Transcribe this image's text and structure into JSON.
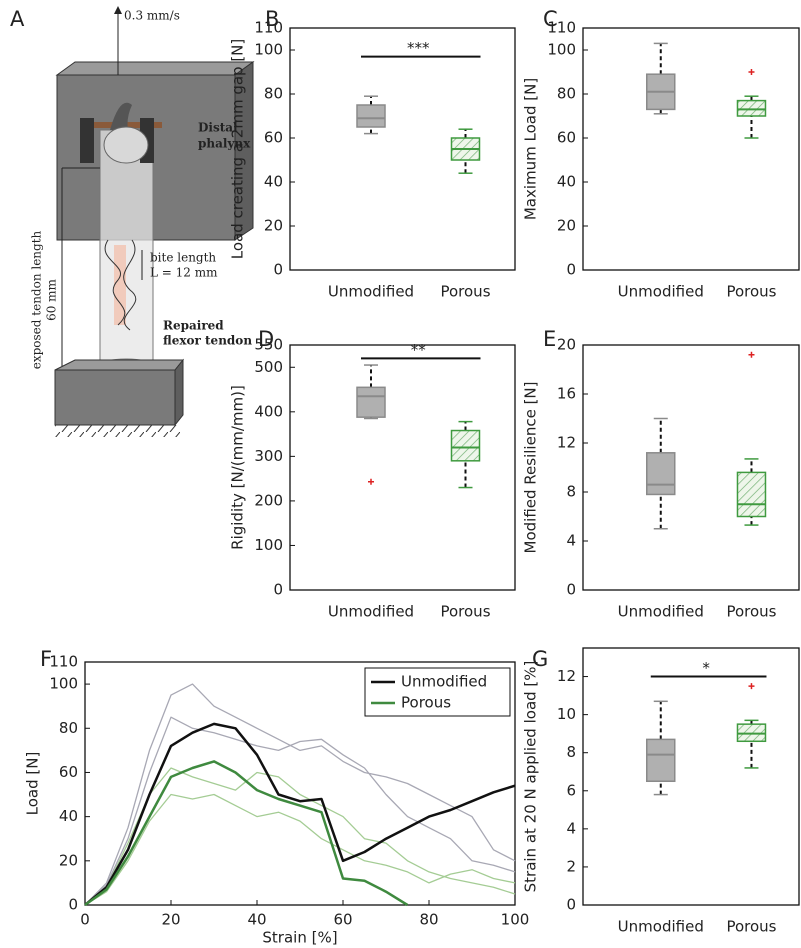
{
  "panel_a": {
    "label": "A",
    "speed": "0.3 mm/s",
    "distal_1": "Distal",
    "distal_2": "phalynx",
    "exposed_1": "exposed tendon length",
    "exposed_2": "60 mm",
    "bite_1": "bite length",
    "bite_2": "L = 12 mm",
    "repaired_1": "Repaired",
    "repaired_2": "flexor tendon"
  },
  "chart_data": [
    {
      "type": "box",
      "label": "B",
      "y_label": "Load creating a 2mm gap [N]",
      "categories": [
        "Unmodified",
        "Porous"
      ],
      "ylim": [
        0,
        110
      ],
      "yticks": [
        0,
        20,
        40,
        60,
        80,
        100,
        110
      ],
      "boxes": [
        {
          "color": "#8a8a8a",
          "fill": "#b0b0b0",
          "whislo": 62,
          "q1": 65,
          "med": 69,
          "q3": 75,
          "whishi": 79,
          "fliers": []
        },
        {
          "color": "#3f9a3f",
          "fill": "hatch",
          "whislo": 44,
          "q1": 50,
          "med": 55,
          "q3": 60,
          "whishi": 64,
          "fliers": []
        }
      ],
      "significance": {
        "label": "***",
        "y": 97
      }
    },
    {
      "type": "box",
      "label": "C",
      "y_label": "Maximum Load [N]",
      "categories": [
        "Unmodified",
        "Porous"
      ],
      "ylim": [
        0,
        110
      ],
      "yticks": [
        0,
        20,
        40,
        60,
        80,
        100,
        110
      ],
      "boxes": [
        {
          "color": "#8a8a8a",
          "fill": "#b0b0b0",
          "whislo": 71,
          "q1": 73,
          "med": 81,
          "q3": 89,
          "whishi": 103,
          "fliers": []
        },
        {
          "color": "#3f9a3f",
          "fill": "hatch",
          "whislo": 60,
          "q1": 70,
          "med": 73,
          "q3": 77,
          "whishi": 79,
          "fliers": [
            90
          ]
        }
      ]
    },
    {
      "type": "box",
      "label": "D",
      "y_label": "Rigidity [N/(mm/mm)]",
      "categories": [
        "Unmodified",
        "Porous"
      ],
      "ylim": [
        0,
        550
      ],
      "yticks": [
        0,
        100,
        200,
        300,
        400,
        500,
        550
      ],
      "boxes": [
        {
          "color": "#8a8a8a",
          "fill": "#b0b0b0",
          "whislo": 385,
          "q1": 388,
          "med": 435,
          "q3": 455,
          "whishi": 505,
          "fliers": [
            243
          ]
        },
        {
          "color": "#3f9a3f",
          "fill": "hatch",
          "whislo": 230,
          "q1": 290,
          "med": 320,
          "q3": 358,
          "whishi": 378,
          "fliers": []
        }
      ],
      "significance": {
        "label": "**",
        "y": 520
      }
    },
    {
      "type": "box",
      "label": "E",
      "y_label": "Modified Resilience [N]",
      "categories": [
        "Unmodified",
        "Porous"
      ],
      "ylim": [
        0,
        20
      ],
      "yticks": [
        0,
        4,
        8,
        12,
        16,
        20
      ],
      "boxes": [
        {
          "color": "#8a8a8a",
          "fill": "#b0b0b0",
          "whislo": 5,
          "q1": 7.8,
          "med": 8.6,
          "q3": 11.2,
          "whishi": 14,
          "fliers": []
        },
        {
          "color": "#3f9a3f",
          "fill": "hatch",
          "whislo": 5.3,
          "q1": 6,
          "med": 7,
          "q3": 9.6,
          "whishi": 10.7,
          "fliers": [
            19.2
          ]
        }
      ]
    },
    {
      "type": "line",
      "label": "F",
      "x_label": "Strain [%]",
      "y_label": "Load [N]",
      "xlim": [
        0,
        100
      ],
      "xticks": [
        0,
        20,
        40,
        60,
        80,
        100
      ],
      "ylim": [
        0,
        110
      ],
      "yticks": [
        0,
        20,
        40,
        60,
        80,
        100,
        110
      ],
      "x": [
        0,
        5,
        10,
        15,
        20,
        25,
        30,
        35,
        40,
        45,
        50,
        55,
        60,
        65,
        70,
        75,
        80,
        85,
        90,
        95,
        100
      ],
      "series": [
        {
          "color": "#a8a8b4",
          "width": 1.3,
          "values": [
            0,
            10,
            35,
            70,
            95,
            100,
            90,
            85,
            80,
            75,
            70,
            72,
            65,
            60,
            58,
            55,
            50,
            45,
            40,
            25,
            20
          ]
        },
        {
          "color": "#a8a8b4",
          "width": 1.3,
          "values": [
            0,
            9,
            30,
            60,
            85,
            80,
            78,
            75,
            72,
            70,
            74,
            75,
            68,
            62,
            50,
            40,
            35,
            30,
            20,
            18,
            15
          ]
        },
        {
          "color": "#a4cc94",
          "width": 1.3,
          "values": [
            0,
            8,
            28,
            50,
            62,
            58,
            55,
            52,
            60,
            58,
            50,
            45,
            40,
            30,
            28,
            20,
            15,
            12,
            10,
            8,
            5
          ]
        },
        {
          "color": "#a4cc94",
          "width": 1.3,
          "values": [
            0,
            6,
            20,
            38,
            50,
            48,
            50,
            45,
            40,
            42,
            38,
            30,
            25,
            20,
            18,
            15,
            10,
            14,
            16,
            12,
            10
          ]
        },
        {
          "name": "Unmodified",
          "color": "#111111",
          "width": 2.5,
          "values": [
            0,
            8,
            25,
            50,
            72,
            78,
            82,
            80,
            68,
            50,
            47,
            48,
            20,
            24,
            30,
            35,
            40,
            43,
            47,
            51,
            54
          ]
        },
        {
          "name": "Porous",
          "color": "#3f8a3f",
          "width": 2.5,
          "values": [
            0,
            7,
            22,
            40,
            58,
            62,
            65,
            60,
            52,
            48,
            45,
            42,
            12,
            11,
            6,
            0,
            null,
            null,
            null,
            null,
            null
          ]
        }
      ],
      "legend": "upper right"
    },
    {
      "type": "box",
      "label": "G",
      "y_label": "Strain at 20 N applied load [%]",
      "categories": [
        "Unmodified",
        "Porous"
      ],
      "ylim": [
        0,
        13.5
      ],
      "yticks": [
        0,
        2,
        4,
        6,
        8,
        10,
        12
      ],
      "boxes": [
        {
          "color": "#8a8a8a",
          "fill": "#b0b0b0",
          "whislo": 5.8,
          "q1": 6.5,
          "med": 7.9,
          "q3": 8.7,
          "whishi": 10.7,
          "fliers": []
        },
        {
          "color": "#3f9a3f",
          "fill": "hatch",
          "whislo": 7.2,
          "q1": 8.6,
          "med": 9,
          "q3": 9.5,
          "whishi": 9.7,
          "fliers": [
            11.5
          ]
        }
      ],
      "significance": {
        "label": "*",
        "y": 12
      }
    }
  ]
}
